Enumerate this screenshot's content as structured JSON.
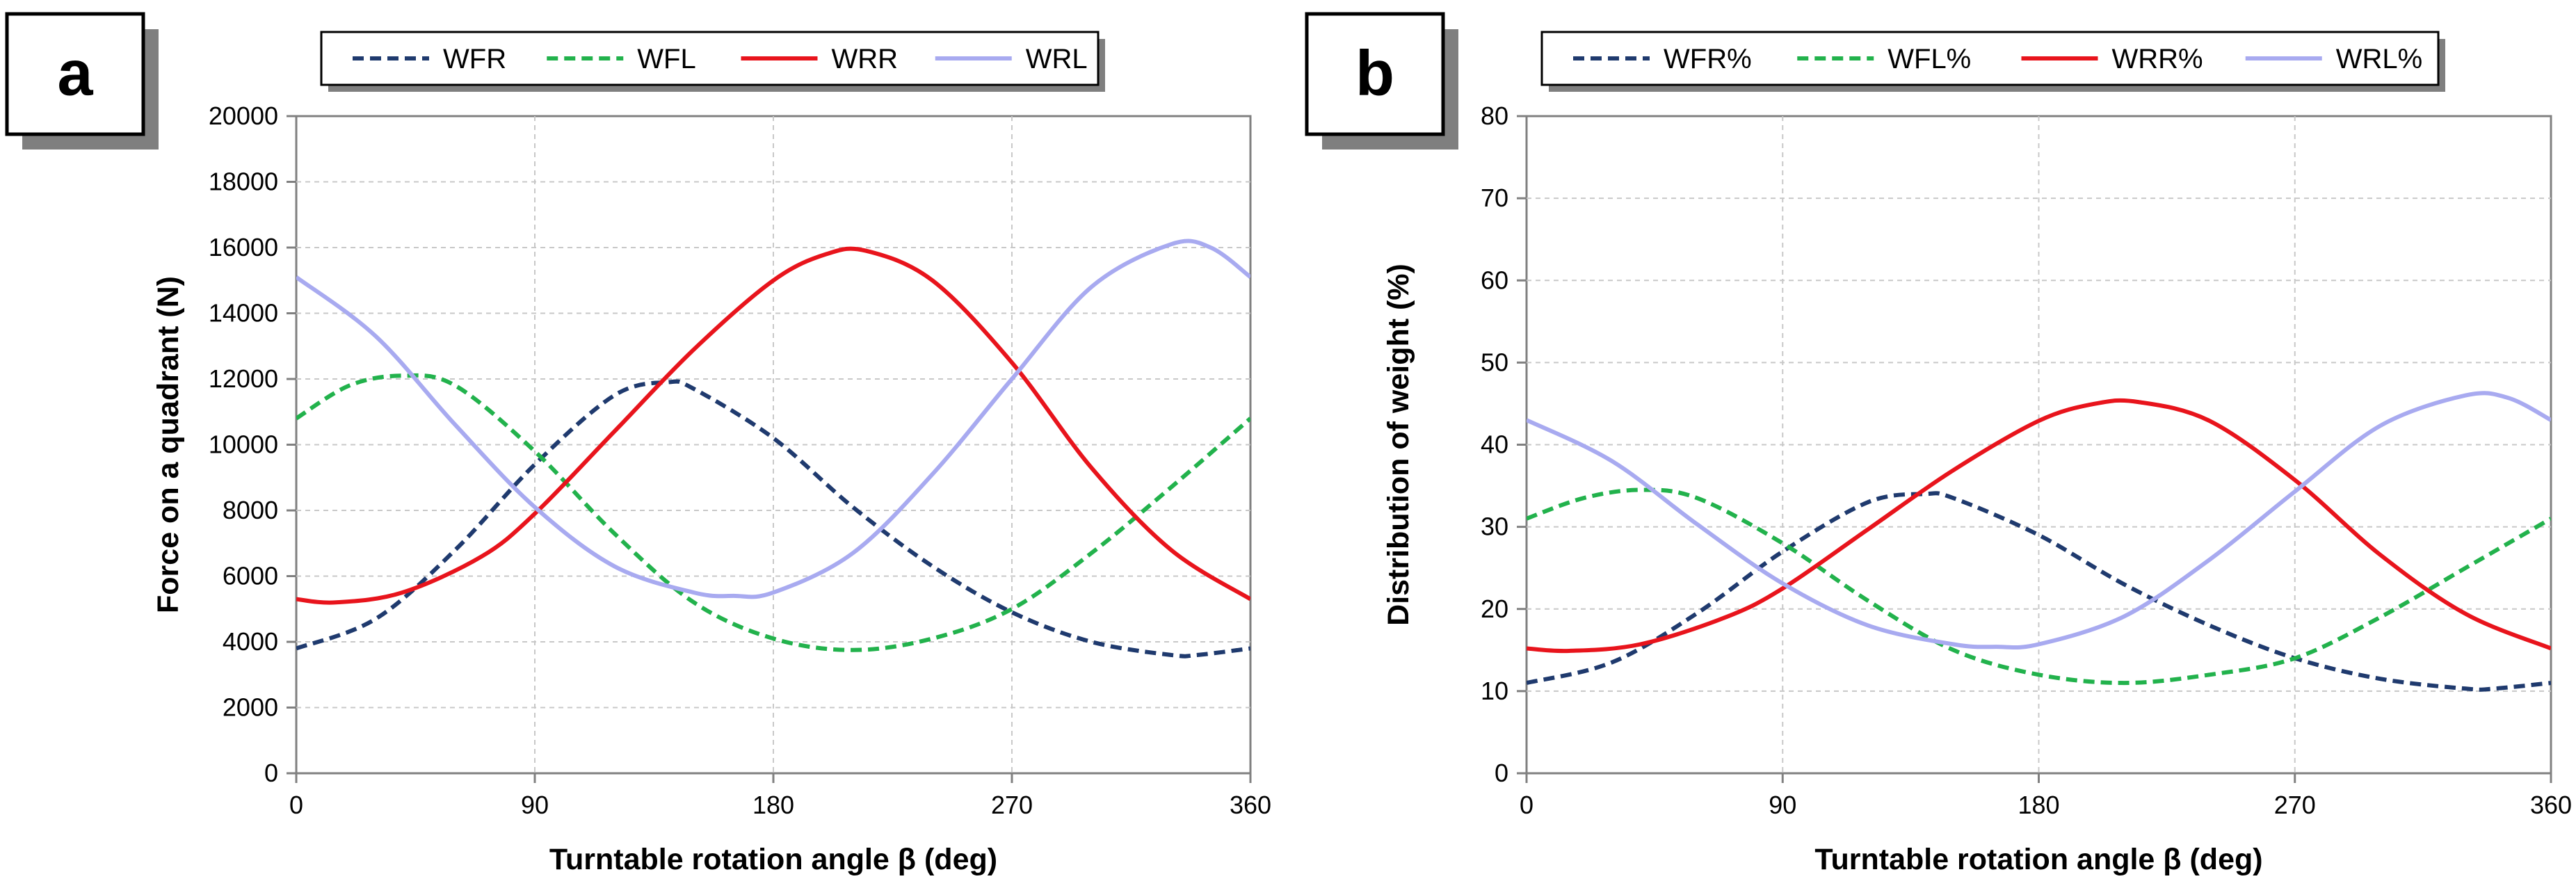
{
  "panels": [
    {
      "label": "a",
      "chart_data": {
        "type": "line",
        "xlabel": "Turntable rotation angle β (deg)",
        "ylabel": "Force on a quadrant (N)",
        "xlim": [
          0,
          360
        ],
        "ylim": [
          0,
          20000
        ],
        "xticks": [
          0,
          90,
          180,
          270,
          360
        ],
        "yticks": [
          0,
          2000,
          4000,
          6000,
          8000,
          10000,
          12000,
          14000,
          16000,
          18000,
          20000
        ],
        "grid": true,
        "legend": "top",
        "series": [
          {
            "name": "WFR",
            "color": "#1f3a6e",
            "dashed": true,
            "x": [
              0,
              30,
              60,
              90,
              120,
              140,
              150,
              180,
              210,
              240,
              270,
              300,
              330,
              340,
              360
            ],
            "y": [
              3800,
              4700,
              6800,
              9400,
              11500,
              11900,
              11700,
              10200,
              8100,
              6300,
              4900,
              4000,
              3600,
              3600,
              3800
            ]
          },
          {
            "name": "WFL",
            "color": "#22b24c",
            "dashed": true,
            "x": [
              0,
              20,
              40,
              60,
              90,
              120,
              150,
              180,
              210,
              240,
              270,
              300,
              330,
              360
            ],
            "y": [
              10800,
              11800,
              12100,
              11800,
              9800,
              7300,
              5200,
              4100,
              3750,
              4100,
              5000,
              6700,
              8700,
              10800
            ]
          },
          {
            "name": "WRR",
            "color": "#e8141c",
            "dashed": false,
            "x": [
              0,
              15,
              40,
              70,
              90,
              120,
              150,
              180,
              200,
              215,
              240,
              270,
              300,
              330,
              360
            ],
            "y": [
              5300,
              5200,
              5500,
              6600,
              7900,
              10400,
              12900,
              15000,
              15800,
              15900,
              15000,
              12500,
              9300,
              6800,
              5300
            ]
          },
          {
            "name": "WRL",
            "color": "#a8aaf0",
            "dashed": false,
            "x": [
              0,
              30,
              60,
              90,
              120,
              150,
              165,
              180,
              210,
              240,
              270,
              300,
              330,
              345,
              360
            ],
            "y": [
              15100,
              13300,
              10600,
              8100,
              6300,
              5500,
              5400,
              5500,
              6700,
              9100,
              12000,
              14800,
              16100,
              16000,
              15100
            ]
          }
        ]
      }
    },
    {
      "label": "b",
      "chart_data": {
        "type": "line",
        "xlabel": "Turntable rotation angle β (deg)",
        "ylabel": "Distribution of weight (%)",
        "xlim": [
          0,
          360
        ],
        "ylim": [
          0,
          80
        ],
        "xticks": [
          0,
          90,
          180,
          270,
          360
        ],
        "yticks": [
          0,
          10,
          20,
          30,
          40,
          50,
          60,
          70,
          80
        ],
        "grid": true,
        "legend": "top",
        "series": [
          {
            "name": "WFR%",
            "color": "#1f3a6e",
            "dashed": true,
            "x": [
              0,
              30,
              60,
              90,
              120,
              140,
              150,
              180,
              210,
              240,
              270,
              300,
              330,
              340,
              360
            ],
            "y": [
              11,
              13.5,
              19.5,
              27,
              33,
              34,
              33.5,
              29,
              23,
              18,
              14,
              11.5,
              10.3,
              10.3,
              11
            ]
          },
          {
            "name": "WFL%",
            "color": "#22b24c",
            "dashed": true,
            "x": [
              0,
              20,
              40,
              60,
              90,
              120,
              150,
              180,
              210,
              240,
              270,
              300,
              330,
              360
            ],
            "y": [
              31,
              33.5,
              34.5,
              33.5,
              28,
              21,
              15,
              12,
              11,
              12,
              14,
              19,
              25,
              31
            ]
          },
          {
            "name": "WRR%",
            "color": "#e8141c",
            "dashed": false,
            "x": [
              0,
              15,
              40,
              70,
              90,
              120,
              150,
              180,
              200,
              215,
              240,
              270,
              300,
              330,
              360
            ],
            "y": [
              15.2,
              14.9,
              15.7,
              19,
              22.5,
              29.7,
              36.9,
              42.9,
              45,
              45.2,
              42.9,
              35.7,
              26.6,
              19.4,
              15.2
            ]
          },
          {
            "name": "WRL%",
            "color": "#a8aaf0",
            "dashed": false,
            "x": [
              0,
              30,
              60,
              90,
              120,
              150,
              165,
              180,
              210,
              240,
              270,
              300,
              330,
              345,
              360
            ],
            "y": [
              43,
              38,
              30.3,
              23.1,
              18,
              15.7,
              15.4,
              15.7,
              19.1,
              26,
              34.3,
              42.3,
              46,
              45.7,
              43
            ]
          }
        ]
      }
    }
  ]
}
